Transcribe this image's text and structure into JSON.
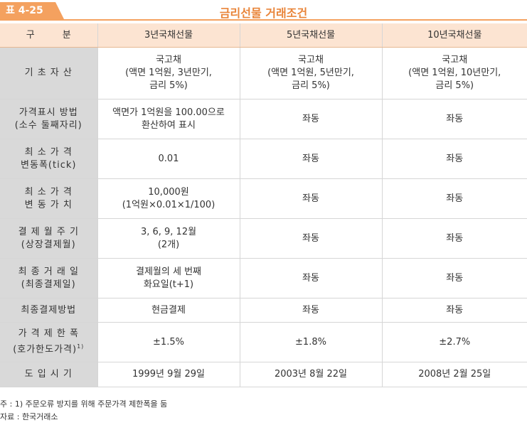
{
  "header": {
    "table_number": "표 4-25",
    "title": "금리선물 거래조건"
  },
  "table": {
    "columns": [
      "구　　　분",
      "3년국채선물",
      "5년국채선물",
      "10년국채선물"
    ],
    "rows": [
      {
        "label": "기 초 자 산",
        "cells": [
          "국고채\n(액면 1억원, 3년만기,\n금리 5%)",
          "국고채\n(액면 1억원, 5년만기,\n금리 5%)",
          "국고채\n(액면 1억원, 10년만기,\n금리 5%)"
        ]
      },
      {
        "label": "가격표시 방법\n(소수 둘째자리)",
        "cells": [
          "액면가 1억원을 100.00으로\n환산하여 표시",
          "좌동",
          "좌동"
        ]
      },
      {
        "label": "최 소 가 격\n변동폭(tick)",
        "cells": [
          "0.01",
          "좌동",
          "좌동"
        ]
      },
      {
        "label": "최 소 가 격\n변 동 가 치",
        "cells": [
          "10,000원\n(1억원×0.01×1/100)",
          "좌동",
          "좌동"
        ]
      },
      {
        "label": "결 제 월 주 기\n(상장결제월)",
        "cells": [
          "3, 6, 9, 12월\n(2개)",
          "좌동",
          "좌동"
        ]
      },
      {
        "label": "최 종 거 래 일\n(최종결제일)",
        "cells": [
          "결제월의 세 번째\n화요일(t+1)",
          "좌동",
          "좌동"
        ]
      },
      {
        "label": "최종결제방법",
        "cells": [
          "현금결제",
          "좌동",
          "좌동"
        ]
      },
      {
        "label": "가 격 제 한 폭\n(호가한도가격)",
        "label_sup": "1)",
        "cells": [
          "±1.5%",
          "±1.8%",
          "±2.7%"
        ]
      },
      {
        "label": "도 입 시 기",
        "cells": [
          "1999년 9월 29일",
          "2003년 8월 22일",
          "2008년 2월 25일"
        ]
      }
    ]
  },
  "footnotes": {
    "note": "주 : 1) 주문오류 방지를 위해 주문가격 제한폭을 둠",
    "source": "자료 : 한국거래소"
  }
}
